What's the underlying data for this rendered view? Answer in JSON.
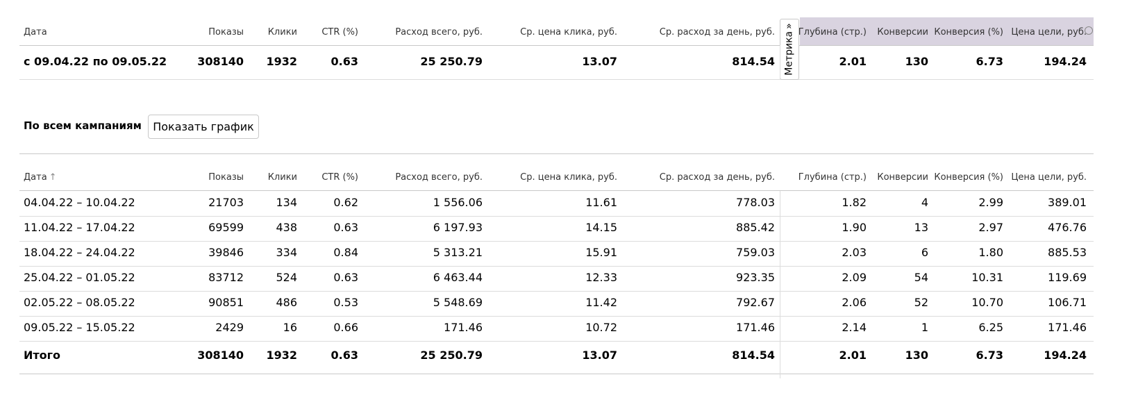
{
  "summary": {
    "headers": {
      "date": "Дата",
      "shows": "Показы",
      "clicks": "Клики",
      "ctr": "CTR (%)",
      "spend": "Расход всего, руб.",
      "avg_cpc": "Ср. цена клика, руб.",
      "avg_daily": "Ср. расход за день, руб.",
      "depth": "Глубина (стр.)",
      "conversions": "Конверсии",
      "conv_rate": "Конверсия (%)",
      "goal_cost": "Цена цели, руб."
    },
    "row": {
      "date": "с 09.04.22 по 09.05.22",
      "shows": "308140",
      "clicks": "1932",
      "ctr": "0.63",
      "spend": "25 250.79",
      "avg_cpc": "13.07",
      "avg_daily": "814.54",
      "depth": "2.01",
      "conversions": "130",
      "conv_rate": "6.73",
      "goal_cost": "194.24"
    }
  },
  "metrika_tab": {
    "label": "Метрика",
    "arrow": "»"
  },
  "campaigns": {
    "title": "По всем кампаниям",
    "chart_button": "Показать график"
  },
  "detail": {
    "headers": {
      "date": "Дата",
      "sort_arrow": "↑",
      "shows": "Показы",
      "clicks": "Клики",
      "ctr": "CTR (%)",
      "spend": "Расход всего, руб.",
      "avg_cpc": "Ср. цена клика, руб.",
      "avg_daily": "Ср. расход за день, руб.",
      "depth": "Глубина (стр.)",
      "conversions": "Конверсии",
      "conv_rate": "Конверсия (%)",
      "goal_cost": "Цена цели, руб."
    },
    "rows": [
      {
        "date": "04.04.22 – 10.04.22",
        "shows": "21703",
        "clicks": "134",
        "ctr": "0.62",
        "spend": "1 556.06",
        "avg_cpc": "11.61",
        "avg_daily": "778.03",
        "depth": "1.82",
        "conversions": "4",
        "conv_rate": "2.99",
        "goal_cost": "389.01"
      },
      {
        "date": "11.04.22 – 17.04.22",
        "shows": "69599",
        "clicks": "438",
        "ctr": "0.63",
        "spend": "6 197.93",
        "avg_cpc": "14.15",
        "avg_daily": "885.42",
        "depth": "1.90",
        "conversions": "13",
        "conv_rate": "2.97",
        "goal_cost": "476.76"
      },
      {
        "date": "18.04.22 – 24.04.22",
        "shows": "39846",
        "clicks": "334",
        "ctr": "0.84",
        "spend": "5 313.21",
        "avg_cpc": "15.91",
        "avg_daily": "759.03",
        "depth": "2.03",
        "conversions": "6",
        "conv_rate": "1.80",
        "goal_cost": "885.53"
      },
      {
        "date": "25.04.22 – 01.05.22",
        "shows": "83712",
        "clicks": "524",
        "ctr": "0.63",
        "spend": "6 463.44",
        "avg_cpc": "12.33",
        "avg_daily": "923.35",
        "depth": "2.09",
        "conversions": "54",
        "conv_rate": "10.31",
        "goal_cost": "119.69"
      },
      {
        "date": "02.05.22 – 08.05.22",
        "shows": "90851",
        "clicks": "486",
        "ctr": "0.53",
        "spend": "5 548.69",
        "avg_cpc": "11.42",
        "avg_daily": "792.67",
        "depth": "2.06",
        "conversions": "52",
        "conv_rate": "10.70",
        "goal_cost": "106.71"
      },
      {
        "date": "09.05.22 – 15.05.22",
        "shows": "2429",
        "clicks": "16",
        "ctr": "0.66",
        "spend": "171.46",
        "avg_cpc": "10.72",
        "avg_daily": "171.46",
        "depth": "2.14",
        "conversions": "1",
        "conv_rate": "6.25",
        "goal_cost": "171.46"
      }
    ],
    "total": {
      "date": "Итого",
      "shows": "308140",
      "clicks": "1932",
      "ctr": "0.63",
      "spend": "25 250.79",
      "avg_cpc": "13.07",
      "avg_daily": "814.54",
      "depth": "2.01",
      "conversions": "130",
      "conv_rate": "6.73",
      "goal_cost": "194.24"
    }
  }
}
